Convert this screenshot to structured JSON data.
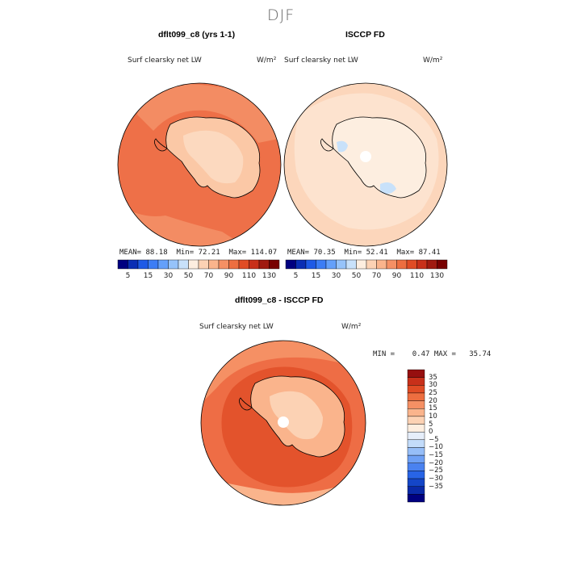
{
  "page_title": "DJF",
  "colors": {
    "abs_scale": [
      "#000080",
      "#0a2eb4",
      "#1e5ae6",
      "#3c7df5",
      "#64a0fa",
      "#96c3fa",
      "#c8e1fa",
      "#fdeee0",
      "#fcd2b4",
      "#fab48c",
      "#f59064",
      "#ed6e40",
      "#e04c25",
      "#c8301a",
      "#a01a10",
      "#780000"
    ],
    "diff_scale": [
      "#000080",
      "#0a2aa8",
      "#1446c8",
      "#2864e6",
      "#4a82f0",
      "#6ea0f5",
      "#96bef8",
      "#c3dcfa",
      "#e6eefa",
      "#fdeee0",
      "#fcd2b4",
      "#fab48c",
      "#f59064",
      "#ed6e40",
      "#e04c25",
      "#c8301a",
      "#960f0f"
    ],
    "ocean_model": "#ee7048",
    "ocean_model_alt": "#f38c63",
    "ocean_obs": "#fcd6bb",
    "ice_obs": "#fdeee0",
    "ocean_diff": "#ee6d45",
    "coast": "#000000"
  },
  "chart_data": [
    {
      "type": "polar-map",
      "panel_title": "dflt099_c8 (yrs 1-1)",
      "variable_label": "Surf clearsky net LW",
      "units": "W/m²",
      "stats": {
        "mean_label": "MEAN=",
        "mean": "88.18",
        "min_label": "Min=",
        "min": "72.21",
        "max_label": "Max=",
        "max": "114.07"
      },
      "colorbar_ticks": [
        "5",
        "15",
        "30",
        "50",
        "70",
        "90",
        "110",
        "130"
      ]
    },
    {
      "type": "polar-map",
      "panel_title": "ISCCP FD",
      "variable_label": "Surf clearsky net LW",
      "units": "W/m²",
      "stats": {
        "mean_label": "MEAN=",
        "mean": "70.35",
        "min_label": "Min=",
        "min": "52.41",
        "max_label": "Max=",
        "max": "87.41"
      },
      "colorbar_ticks": [
        "5",
        "15",
        "30",
        "50",
        "70",
        "90",
        "110",
        "130"
      ]
    },
    {
      "type": "polar-map",
      "panel_title": "dflt099_c8 - ISCCP FD",
      "variable_label": "Surf clearsky net LW",
      "units": "W/m²",
      "minmax_text": "MIN =    0.47 MAX =   35.74",
      "legend_labels": [
        "35",
        "30",
        "25",
        "20",
        "15",
        "10",
        "5",
        "0",
        "−5",
        "−10",
        "−15",
        "−20",
        "−25",
        "−30",
        "−35"
      ]
    }
  ]
}
